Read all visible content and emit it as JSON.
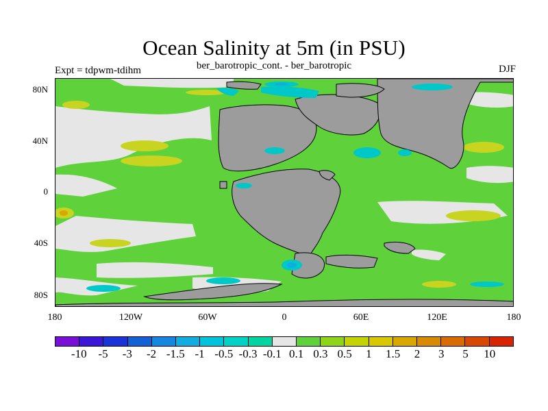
{
  "title": "Ocean Salinity at 5m (in PSU)",
  "subtitle": "ber_barotropic_cont. - ber_barotropic",
  "left_label": "Expt = tdpwm-tdihm",
  "right_label": "DJF",
  "lat_labels": [
    "80N",
    "40N",
    "0",
    "40S",
    "80S"
  ],
  "lon_labels": [
    "180",
    "120W",
    "60W",
    "0",
    "60E",
    "120E",
    "180"
  ],
  "colorbar_labels": [
    "-10",
    "-5",
    "-3",
    "-2",
    "-1.5",
    "-1",
    "-0.5",
    "-0.3",
    "-0.1",
    "0.1",
    "0.3",
    "0.5",
    "1",
    "1.5",
    "2",
    "3",
    "5",
    "10"
  ],
  "colorbar_colors": [
    "#7a10d8",
    "#3a16d6",
    "#1a32d8",
    "#1262d6",
    "#1488e0",
    "#10aee0",
    "#00c4dc",
    "#00d2c8",
    "#00d4a0",
    "#e6e6e6",
    "#5fd13a",
    "#90d41a",
    "#c4d400",
    "#d8c800",
    "#d8a800",
    "#d88a00",
    "#d86c00",
    "#d84800",
    "#d82400"
  ],
  "map_colors": {
    "ocean_main": "#5fd13a",
    "near_zero": "#e6e6e6",
    "land": "#9c9c9c",
    "cyan": "#00c8c8",
    "yellow": "#c8d420",
    "orange": "#d8a800",
    "dark_cyan": "#10aee0"
  }
}
